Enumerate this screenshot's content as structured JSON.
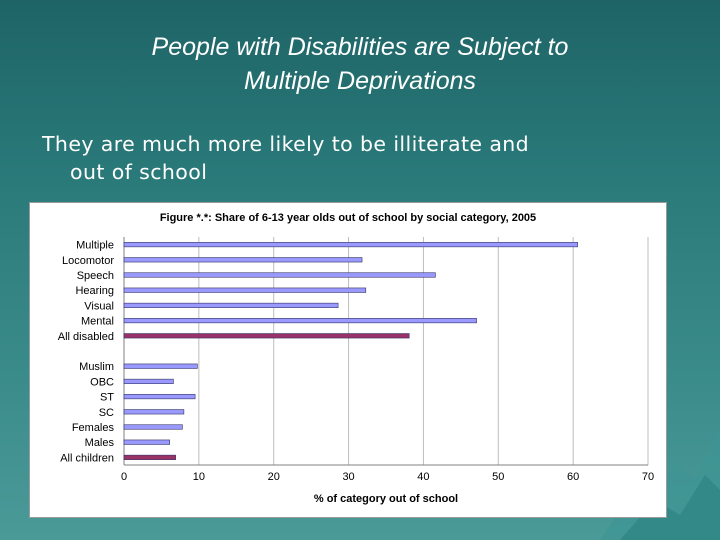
{
  "slide": {
    "title_line1": "People with Disabilities are Subject to",
    "title_line2": "Multiple Deprivations",
    "bullet_line1": "They are much more likely to be illiterate and",
    "bullet_line2": "out of school"
  },
  "chart_data": {
    "type": "bar",
    "orientation": "horizontal",
    "title": "Figure *.*: Share of 6-13 year olds out of school by social category, 2005",
    "xlabel": "% of category out of school",
    "ylabel": "",
    "xlim": [
      0,
      70
    ],
    "xticks": [
      0,
      10,
      20,
      30,
      40,
      50,
      60,
      70
    ],
    "grid": "vertical",
    "legend": "none",
    "categories": [
      "Multiple",
      "Locomotor",
      "Speech",
      "Hearing",
      "Visual",
      "Mental",
      "All disabled",
      "Muslim",
      "OBC",
      "ST",
      "SC",
      "Females",
      "Males",
      "All children"
    ],
    "values": [
      60.6,
      31.8,
      41.6,
      32.3,
      28.6,
      47.1,
      38.1,
      9.8,
      6.6,
      9.5,
      8.0,
      7.8,
      6.1,
      6.9
    ],
    "groups": [
      7,
      7
    ],
    "colors": {
      "default": "#9999ff",
      "highlight": "#993366",
      "grid": "#bdbdbd"
    },
    "highlighted": [
      "All disabled",
      "All children"
    ]
  }
}
